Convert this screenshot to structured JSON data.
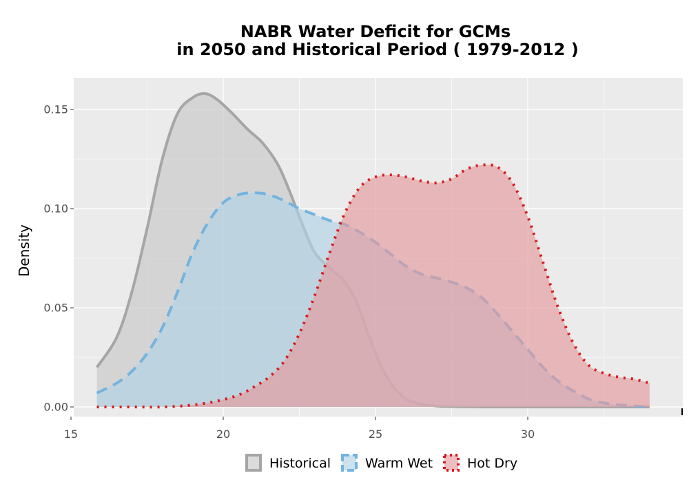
{
  "chart_data": {
    "type": "area",
    "title_line1": "NABR  Water Deficit for GCMs",
    "title_line2": "in 2050 and Historical Period ( 1979-2012 )",
    "xlabel": "",
    "ylabel": "Density",
    "xlim": [
      15,
      35
    ],
    "ylim": [
      0,
      0.16
    ],
    "x_ticks": [
      15,
      20,
      25,
      30
    ],
    "x_tick_labels": [
      "15",
      "20",
      "25",
      "30"
    ],
    "y_ticks": [
      0,
      0.05,
      0.1,
      0.15
    ],
    "y_tick_labels": [
      "0.00",
      "0.05",
      "0.10",
      "0.15"
    ],
    "grid": true,
    "legend_position": "bottom",
    "series": [
      {
        "name": "Historical",
        "fill": "#c8c8c8",
        "line_color": "#a6a6a6",
        "line_style": "solid",
        "x": [
          15.85,
          16.5,
          17.0,
          17.5,
          18.0,
          18.5,
          19.0,
          19.4,
          19.8,
          20.3,
          20.8,
          21.3,
          21.8,
          22.2,
          22.6,
          23.0,
          23.5,
          24.0,
          24.4,
          24.8,
          25.2,
          25.6,
          26.0,
          26.5,
          27.0,
          27.5,
          28.0,
          29.0,
          30.0,
          32.0,
          34.0
        ],
        "y": [
          0.02,
          0.035,
          0.058,
          0.09,
          0.125,
          0.148,
          0.156,
          0.158,
          0.155,
          0.148,
          0.14,
          0.133,
          0.122,
          0.108,
          0.092,
          0.078,
          0.07,
          0.063,
          0.052,
          0.035,
          0.02,
          0.01,
          0.004,
          0.0015,
          0.0005,
          0.0002,
          0.0001,
          0.0,
          0.0,
          0.0,
          0.0
        ]
      },
      {
        "name": "Warm Wet",
        "fill": "#b2d3e6",
        "line_color": "#74b3de",
        "line_style": "dashed",
        "x": [
          15.85,
          16.5,
          17.0,
          17.5,
          18.0,
          18.5,
          19.0,
          19.5,
          20.0,
          20.5,
          21.0,
          21.5,
          22.0,
          22.5,
          23.0,
          23.5,
          24.0,
          24.5,
          25.0,
          25.5,
          26.0,
          26.5,
          27.0,
          27.5,
          28.0,
          28.5,
          29.0,
          29.5,
          30.0,
          30.5,
          31.0,
          31.5,
          32.0,
          32.5,
          33.0,
          34.0
        ],
        "y": [
          0.007,
          0.012,
          0.018,
          0.027,
          0.04,
          0.058,
          0.078,
          0.093,
          0.103,
          0.107,
          0.108,
          0.107,
          0.104,
          0.1,
          0.097,
          0.094,
          0.092,
          0.088,
          0.083,
          0.077,
          0.071,
          0.067,
          0.065,
          0.063,
          0.06,
          0.055,
          0.047,
          0.038,
          0.029,
          0.02,
          0.013,
          0.008,
          0.004,
          0.002,
          0.001,
          0.0
        ]
      },
      {
        "name": "Hot Dry",
        "fill": "#e39a9d",
        "line_color": "#d7191c",
        "line_style": "dotted",
        "x": [
          15.85,
          17.0,
          18.0,
          19.0,
          19.8,
          20.5,
          21.0,
          21.5,
          22.0,
          22.5,
          23.0,
          23.5,
          24.0,
          24.5,
          25.0,
          25.5,
          26.0,
          26.5,
          27.0,
          27.5,
          28.0,
          28.5,
          29.0,
          29.5,
          30.0,
          30.5,
          31.0,
          31.5,
          32.0,
          32.5,
          33.0,
          33.5,
          34.0
        ],
        "y": [
          0.0,
          0.0,
          0.0,
          0.001,
          0.003,
          0.006,
          0.01,
          0.015,
          0.023,
          0.037,
          0.056,
          0.078,
          0.098,
          0.111,
          0.116,
          0.117,
          0.116,
          0.114,
          0.113,
          0.115,
          0.12,
          0.122,
          0.121,
          0.113,
          0.096,
          0.073,
          0.05,
          0.032,
          0.021,
          0.017,
          0.015,
          0.014,
          0.012
        ]
      }
    ]
  }
}
